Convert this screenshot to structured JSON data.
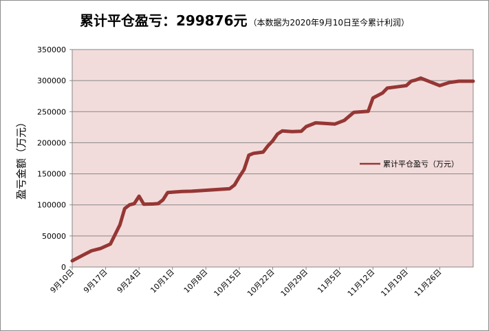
{
  "chart_data": {
    "type": "line",
    "title": "累计平仓盈亏：299876元",
    "subtitle": "（本数据为2020年9月10日至今累计利润）",
    "xlabel": "",
    "ylabel": "盈亏金额（万元）",
    "ylim": [
      0,
      350000
    ],
    "yticks": [
      0,
      50000,
      100000,
      150000,
      200000,
      250000,
      300000,
      350000
    ],
    "xticks": [
      "9月10日",
      "9月17日",
      "9月24日",
      "10月1日",
      "10月8日",
      "10月15日",
      "10月22日",
      "10月29日",
      "11月5日",
      "11月12日",
      "11月19日",
      "11月26日"
    ],
    "xlim": [
      "2020-09-10",
      "2020-12-03"
    ],
    "grid": true,
    "legend_position": "right",
    "series": [
      {
        "name": "累计平仓盈亏（万元）",
        "color": "#953735",
        "points": [
          [
            "2020-09-10",
            10000
          ],
          [
            "2020-09-12",
            18000
          ],
          [
            "2020-09-14",
            26000
          ],
          [
            "2020-09-16",
            30000
          ],
          [
            "2020-09-18",
            37000
          ],
          [
            "2020-09-20",
            68000
          ],
          [
            "2020-09-21",
            94000
          ],
          [
            "2020-09-22",
            100000
          ],
          [
            "2020-09-23",
            102000
          ],
          [
            "2020-09-24",
            114000
          ],
          [
            "2020-09-25",
            101000
          ],
          [
            "2020-09-27",
            101500
          ],
          [
            "2020-09-28",
            102000
          ],
          [
            "2020-09-29",
            108000
          ],
          [
            "2020-09-30",
            120000
          ],
          [
            "2020-10-01",
            120500
          ],
          [
            "2020-10-03",
            121500
          ],
          [
            "2020-10-05",
            122000
          ],
          [
            "2020-10-08",
            123500
          ],
          [
            "2020-10-11",
            125000
          ],
          [
            "2020-10-13",
            126000
          ],
          [
            "2020-10-14",
            132000
          ],
          [
            "2020-10-15",
            145000
          ],
          [
            "2020-10-16",
            157000
          ],
          [
            "2020-10-17",
            180000
          ],
          [
            "2020-10-18",
            183000
          ],
          [
            "2020-10-20",
            185000
          ],
          [
            "2020-10-21",
            195000
          ],
          [
            "2020-10-22",
            203000
          ],
          [
            "2020-10-23",
            214000
          ],
          [
            "2020-10-24",
            219000
          ],
          [
            "2020-10-26",
            218000
          ],
          [
            "2020-10-28",
            218500
          ],
          [
            "2020-10-29",
            226000
          ],
          [
            "2020-10-31",
            232000
          ],
          [
            "2020-11-02",
            231000
          ],
          [
            "2020-11-04",
            230000
          ],
          [
            "2020-11-06",
            236000
          ],
          [
            "2020-11-08",
            249000
          ],
          [
            "2020-11-10",
            250000
          ],
          [
            "2020-11-11",
            250500
          ],
          [
            "2020-11-12",
            272000
          ],
          [
            "2020-11-14",
            280000
          ],
          [
            "2020-11-15",
            288000
          ],
          [
            "2020-11-17",
            290000
          ],
          [
            "2020-11-19",
            292000
          ],
          [
            "2020-11-20",
            299000
          ],
          [
            "2020-11-21",
            301000
          ],
          [
            "2020-11-22",
            304000
          ],
          [
            "2020-11-24",
            298000
          ],
          [
            "2020-11-26",
            292000
          ],
          [
            "2020-11-28",
            297000
          ],
          [
            "2020-11-30",
            299000
          ],
          [
            "2020-12-03",
            299000
          ]
        ]
      }
    ]
  }
}
